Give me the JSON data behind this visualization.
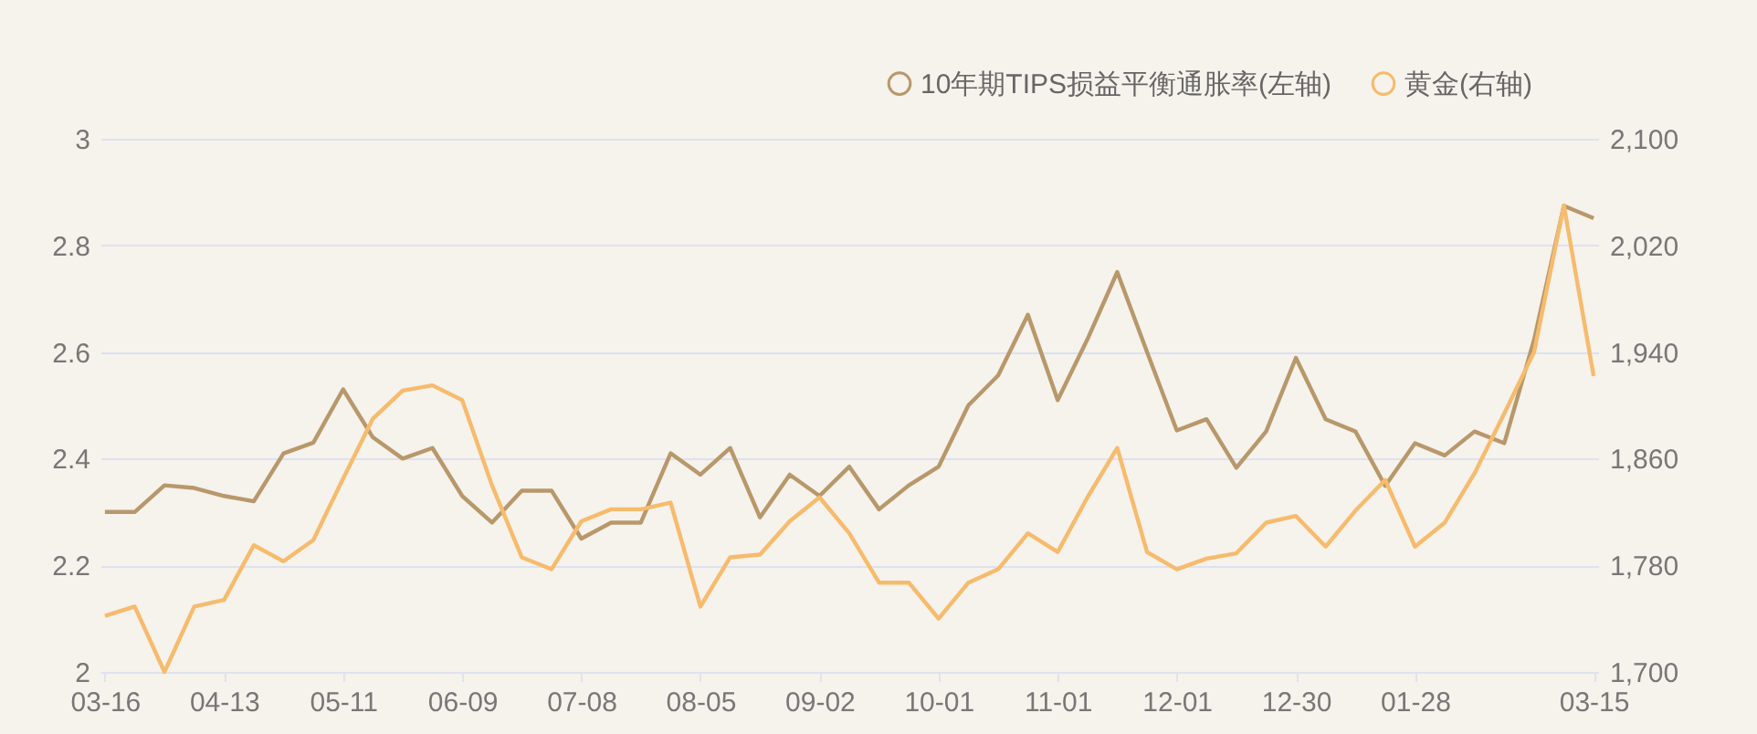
{
  "chart_data": {
    "type": "line",
    "categories": [
      "03-16",
      null,
      null,
      null,
      "04-13",
      null,
      null,
      null,
      "05-11",
      null,
      null,
      null,
      "06-09",
      null,
      null,
      null,
      "07-08",
      null,
      null,
      null,
      "08-05",
      null,
      null,
      null,
      "09-02",
      null,
      null,
      null,
      "10-01",
      null,
      null,
      null,
      "11-01",
      null,
      null,
      null,
      "12-01",
      null,
      null,
      null,
      "12-30",
      null,
      null,
      null,
      "01-28",
      null,
      null,
      null,
      null,
      null,
      "03-15"
    ],
    "series": [
      {
        "name": "10年期TIPS损益平衡通胀率(左轴)",
        "color": "#b8986a",
        "values": [
          2.3,
          2.3,
          2.35,
          2.345,
          2.33,
          2.32,
          2.41,
          2.43,
          2.53,
          2.44,
          2.4,
          2.42,
          2.33,
          2.28,
          2.34,
          2.34,
          2.25,
          2.28,
          2.28,
          2.41,
          2.37,
          2.42,
          2.29,
          2.37,
          2.33,
          2.385,
          2.305,
          2.35,
          2.385,
          2.5,
          2.556,
          2.67,
          2.51,
          2.624,
          2.75,
          2.6,
          2.453,
          2.474,
          2.383,
          2.451,
          2.589,
          2.474,
          2.451,
          2.349,
          2.429,
          2.406,
          2.451,
          2.429,
          2.623,
          2.874,
          2.851
        ]
      },
      {
        "name": "黄金(右轴)",
        "color": "#f6bb6c",
        "axis": "y2",
        "values": [
          1742,
          1749,
          1700,
          1749,
          1754,
          1795,
          1783,
          1799,
          1845,
          1890,
          1911,
          1915,
          1904,
          1840,
          1786,
          1777,
          1813,
          1822,
          1822,
          1827,
          1749,
          1786,
          1788,
          1813,
          1831,
          1804,
          1767,
          1767,
          1740,
          1767,
          1777,
          1804,
          1790,
          1831,
          1868,
          1790,
          1777,
          1785,
          1789,
          1812,
          1817,
          1794,
          1821,
          1844,
          1794,
          1812,
          1849,
          1894,
          1940,
          2050,
          1922
        ]
      }
    ],
    "ylim": [
      2,
      3
    ],
    "yticks": [
      2,
      2.2,
      2.4,
      2.6,
      2.8,
      3
    ],
    "y2lim": [
      1700,
      2100
    ],
    "y2ticks": [
      {
        "value": 1700,
        "label": "1,700"
      },
      {
        "value": 1780,
        "label": "1,780"
      },
      {
        "value": 1860,
        "label": "1,860"
      },
      {
        "value": 1940,
        "label": "1,940"
      },
      {
        "value": 2020,
        "label": "2,020"
      },
      {
        "value": 2100,
        "label": "2,100"
      }
    ],
    "grid": "y",
    "legend": "top right",
    "line_style": "solid"
  }
}
